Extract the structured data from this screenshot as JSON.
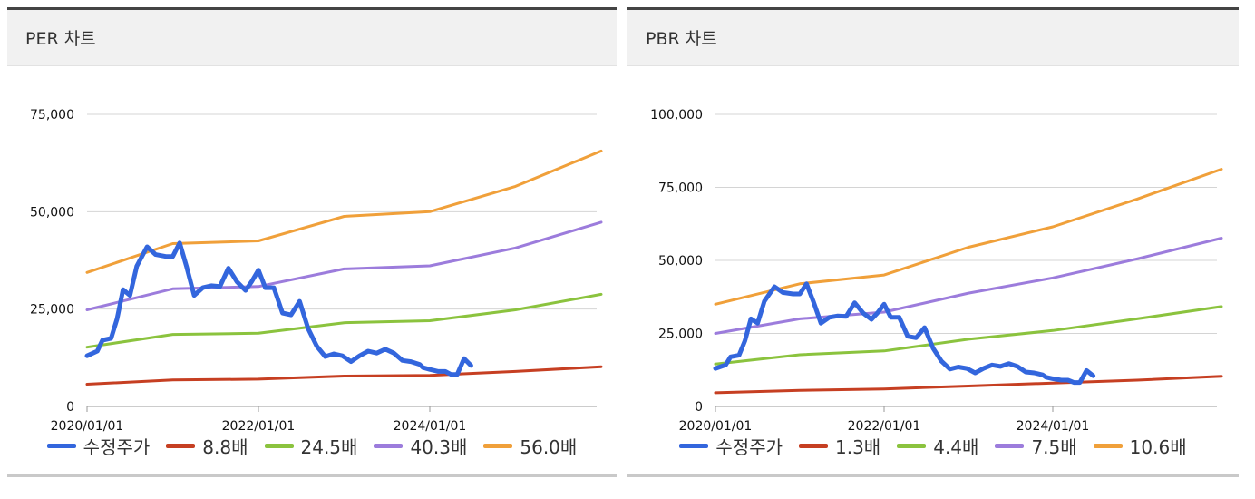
{
  "charts": [
    {
      "title": "PER 차트",
      "chart_data": {
        "type": "line",
        "ylim": [
          0,
          75000
        ],
        "yticks": [
          0,
          25000,
          50000,
          75000
        ],
        "ytick_labels": [
          "0",
          "25,000",
          "50,000",
          "75,000"
        ],
        "xlim": [
          2020.0,
          2026.0
        ],
        "xticks": [
          2020.0,
          2022.0,
          2024.0
        ],
        "xtick_labels": [
          "2020/01/01",
          "2022/01/01",
          "2024/01/01"
        ],
        "grid": true,
        "legend_position": "bottom",
        "series": [
          {
            "name": "수정주가",
            "color": "#3366dd",
            "width": 5,
            "x": [
              2020.0,
              2020.12,
              2020.18,
              2020.28,
              2020.35,
              2020.42,
              2020.5,
              2020.58,
              2020.7,
              2020.8,
              2020.92,
              2021.0,
              2021.08,
              2021.16,
              2021.25,
              2021.35,
              2021.45,
              2021.55,
              2021.65,
              2021.75,
              2021.85,
              2021.92,
              2022.0,
              2022.08,
              2022.18,
              2022.28,
              2022.38,
              2022.48,
              2022.58,
              2022.68,
              2022.78,
              2022.88,
              2022.98,
              2023.08,
              2023.18,
              2023.28,
              2023.38,
              2023.48,
              2023.58,
              2023.68,
              2023.78,
              2023.88,
              2023.92,
              2024.0
            ],
            "y": [
              13000,
              14200,
              17000,
              17500,
              22500,
              30000,
              28500,
              36000,
              41000,
              39000,
              38500,
              38500,
              42000,
              36000,
              28500,
              30500,
              31000,
              30800,
              35500,
              32000,
              29800,
              32000,
              35000,
              30500,
              30500,
              24000,
              23500,
              27000,
              20000,
              15500,
              12800,
              13500,
              13000,
              11500,
              13000,
              14200,
              13700,
              14700,
              13700,
              11800,
              11500,
              10800,
              10000,
              9500
            ],
            "x_more": [
              2024.0,
              2024.1,
              2024.18,
              2024.25,
              2024.32,
              2024.4,
              2024.48
            ],
            "y_more": [
              9500,
              9000,
              9000,
              8200,
              8200,
              12300,
              10500
            ]
          },
          {
            "name": "8.8배",
            "color": "#c63f22",
            "width": 3,
            "x": [
              2020.0,
              2021.0,
              2022.0,
              2023.0,
              2024.0,
              2025.0,
              2026.0
            ],
            "y": [
              5700,
              6800,
              7000,
              7800,
              8000,
              9000,
              10200
            ]
          },
          {
            "name": "24.5배",
            "color": "#8bc33e",
            "width": 3,
            "x": [
              2020.0,
              2021.0,
              2022.0,
              2023.0,
              2024.0,
              2025.0,
              2026.0
            ],
            "y": [
              15200,
              18500,
              18800,
              21500,
              22000,
              24800,
              28800
            ]
          },
          {
            "name": "40.3배",
            "color": "#9c7cdc",
            "width": 3,
            "x": [
              2020.0,
              2021.0,
              2022.0,
              2023.0,
              2024.0,
              2025.0,
              2026.0
            ],
            "y": [
              24800,
              30200,
              30800,
              35300,
              36100,
              40700,
              47300
            ]
          },
          {
            "name": "56.0배",
            "color": "#f0a03a",
            "width": 3,
            "x": [
              2020.0,
              2021.0,
              2022.0,
              2023.0,
              2024.0,
              2025.0,
              2026.0
            ],
            "y": [
              34400,
              41800,
              42500,
              48800,
              50000,
              56500,
              65600
            ]
          }
        ]
      }
    },
    {
      "title": "PBR 차트",
      "chart_data": {
        "type": "line",
        "ylim": [
          0,
          100000
        ],
        "yticks": [
          0,
          25000,
          50000,
          75000,
          100000
        ],
        "ytick_labels": [
          "0",
          "25,000",
          "50,000",
          "75,000",
          "100,000"
        ],
        "xlim": [
          2020.0,
          2026.0
        ],
        "xticks": [
          2020.0,
          2022.0,
          2024.0
        ],
        "xtick_labels": [
          "2020/01/01",
          "2022/01/01",
          "2024/01/01"
        ],
        "grid": true,
        "legend_position": "bottom",
        "series": [
          {
            "name": "수정주가",
            "color": "#3366dd",
            "width": 5,
            "x": [
              2020.0,
              2020.12,
              2020.18,
              2020.28,
              2020.35,
              2020.42,
              2020.5,
              2020.58,
              2020.7,
              2020.8,
              2020.92,
              2021.0,
              2021.08,
              2021.16,
              2021.25,
              2021.35,
              2021.45,
              2021.55,
              2021.65,
              2021.75,
              2021.85,
              2021.92,
              2022.0,
              2022.08,
              2022.18,
              2022.28,
              2022.38,
              2022.48,
              2022.58,
              2022.68,
              2022.78,
              2022.88,
              2022.98,
              2023.08,
              2023.18,
              2023.28,
              2023.38,
              2023.48,
              2023.58,
              2023.68,
              2023.78,
              2023.88,
              2023.92,
              2024.0
            ],
            "y": [
              13000,
              14200,
              17000,
              17500,
              22500,
              30000,
              28500,
              36000,
              41000,
              39000,
              38500,
              38500,
              42000,
              36000,
              28500,
              30500,
              31000,
              30800,
              35500,
              32000,
              29800,
              32000,
              35000,
              30500,
              30500,
              24000,
              23500,
              27000,
              20000,
              15500,
              12800,
              13500,
              13000,
              11500,
              13000,
              14200,
              13700,
              14700,
              13700,
              11800,
              11500,
              10800,
              10000,
              9500
            ],
            "x_more": [
              2024.0,
              2024.1,
              2024.18,
              2024.25,
              2024.32,
              2024.4,
              2024.48
            ],
            "y_more": [
              9500,
              9000,
              9000,
              8200,
              8200,
              12300,
              10500
            ]
          },
          {
            "name": "1.3배",
            "color": "#c63f22",
            "width": 3,
            "x": [
              2020.0,
              2021.0,
              2022.0,
              2023.0,
              2024.0,
              2025.0,
              2026.0
            ],
            "y": [
              4700,
              5500,
              6000,
              7000,
              8000,
              9000,
              10300
            ]
          },
          {
            "name": "4.4배",
            "color": "#8bc33e",
            "width": 3,
            "x": [
              2020.0,
              2021.0,
              2022.0,
              2023.0,
              2024.0,
              2025.0,
              2026.0
            ],
            "y": [
              14500,
              17700,
              19000,
              23000,
              26000,
              30000,
              34200
            ]
          },
          {
            "name": "7.5배",
            "color": "#9c7cdc",
            "width": 3,
            "x": [
              2020.0,
              2021.0,
              2022.0,
              2023.0,
              2024.0,
              2025.0,
              2026.0
            ],
            "y": [
              25000,
              30000,
              32300,
              38800,
              44000,
              50500,
              57600
            ]
          },
          {
            "name": "10.6배",
            "color": "#f0a03a",
            "width": 3,
            "x": [
              2020.0,
              2021.0,
              2022.0,
              2023.0,
              2024.0,
              2025.0,
              2026.0
            ],
            "y": [
              35000,
              42000,
              45000,
              54500,
              61500,
              71000,
              81200
            ]
          }
        ]
      }
    }
  ]
}
